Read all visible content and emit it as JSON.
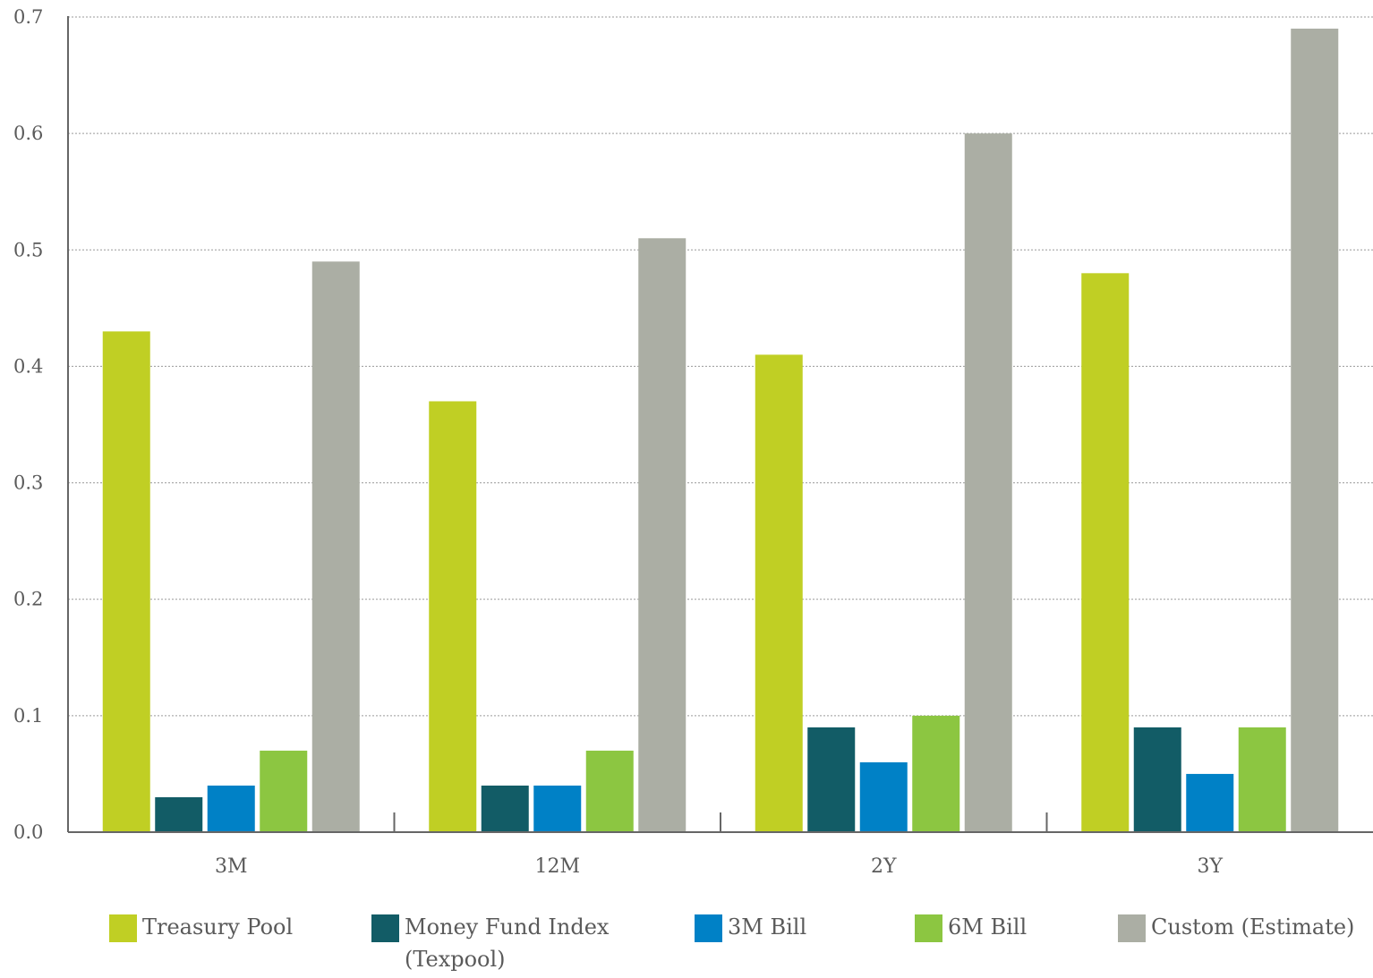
{
  "chart_data": {
    "type": "bar",
    "categories": [
      "3M",
      "12M",
      "2Y",
      "3Y"
    ],
    "ylim": [
      0,
      0.7
    ],
    "yticks": [
      "0.0",
      "0.1",
      "0.2",
      "0.3",
      "0.4",
      "0.5",
      "0.6",
      "0.7"
    ],
    "grid": true,
    "legend_position": "bottom",
    "series": [
      {
        "name": "Treasury Pool",
        "color": "#c0cf24",
        "values": [
          0.43,
          0.37,
          0.41,
          0.48
        ]
      },
      {
        "name": "Money Fund Index\n(Texpool)",
        "color": "#125c66",
        "values": [
          0.03,
          0.04,
          0.09,
          0.09
        ]
      },
      {
        "name": "3M Bill",
        "color": "#0081c6",
        "values": [
          0.04,
          0.04,
          0.06,
          0.05
        ]
      },
      {
        "name": "6M Bill",
        "color": "#8cc641",
        "values": [
          0.07,
          0.07,
          0.1,
          0.09
        ]
      },
      {
        "name": "Custom (Estimate)",
        "color": "#abaea4",
        "values": [
          0.49,
          0.51,
          0.6,
          0.69
        ]
      }
    ]
  }
}
